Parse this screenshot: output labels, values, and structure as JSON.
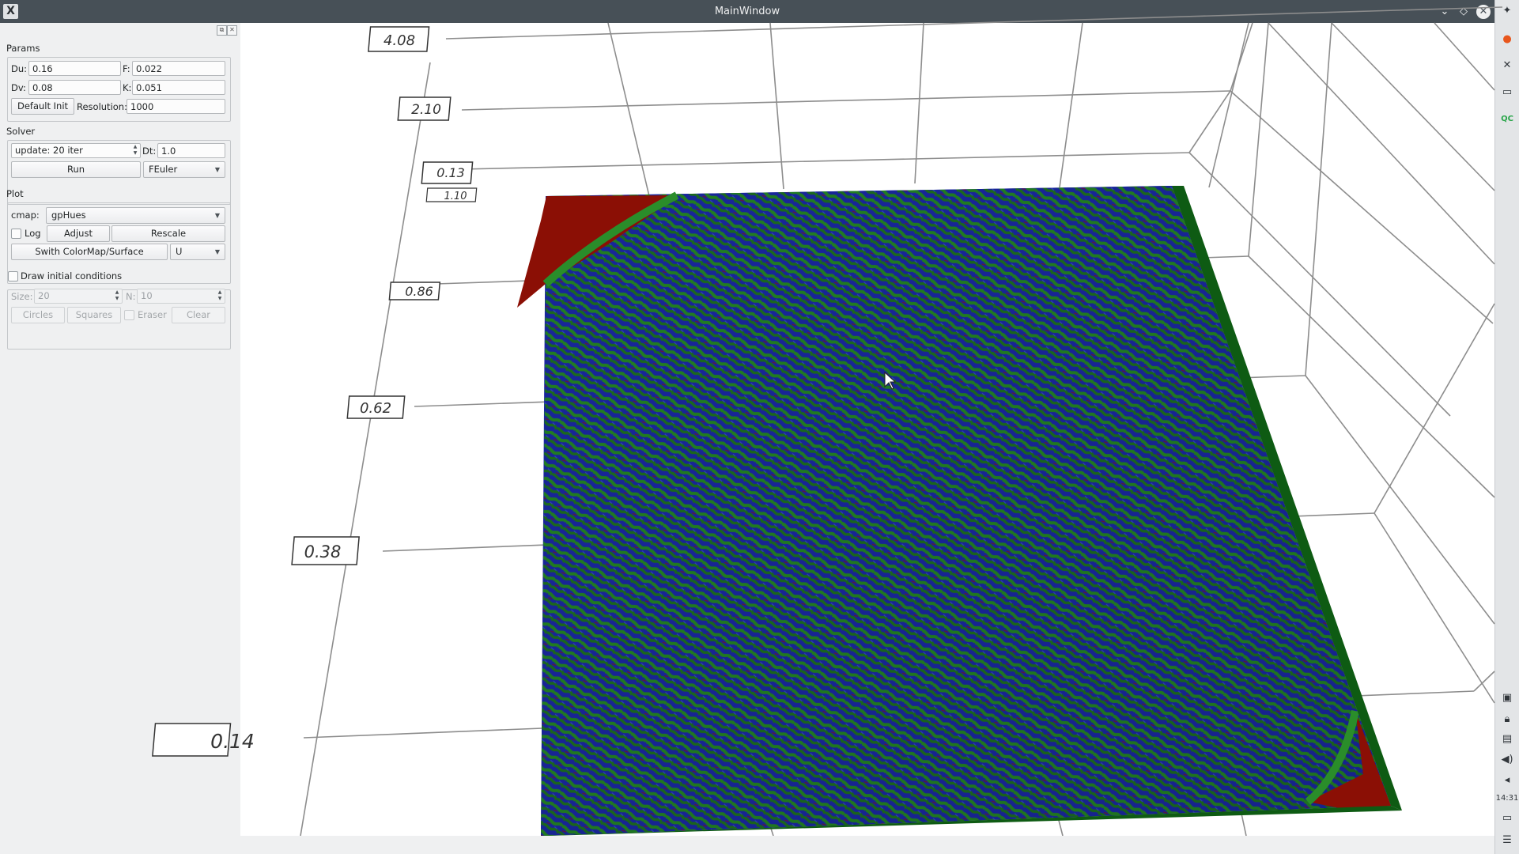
{
  "window": {
    "title": "MainWindow",
    "app_icon": "X"
  },
  "params": {
    "group_label": "Params",
    "du_label": "Du:",
    "du_value": "0.16",
    "f_label": "F:",
    "f_value": "0.022",
    "dv_label": "Dv:",
    "dv_value": "0.08",
    "k_label": "K:",
    "k_value": "0.051",
    "default_init_label": "Default Init",
    "resolution_label": "Resolution:",
    "resolution_value": "1000"
  },
  "solver": {
    "group_label": "Solver",
    "update_value": "update: 20 iter",
    "dt_label": "Dt:",
    "dt_value": "1.0",
    "run_label": "Run",
    "method_value": "FEuler"
  },
  "plot": {
    "group_label": "Plot",
    "cmap_label": "cmap:",
    "cmap_value": "gpHues",
    "log_label": "Log",
    "adjust_label": "Adjust",
    "rescale_label": "Rescale",
    "switch_label": "Swith ColorMap/Surface",
    "field_value": "U"
  },
  "draw": {
    "checkbox_label": "Draw initial conditions",
    "size_label": "Size:",
    "size_value": "20",
    "n_label": "N:",
    "n_value": "10",
    "circles_label": "Circles",
    "squares_label": "Squares",
    "eraser_label": "Eraser",
    "clear_label": "Clear"
  },
  "axis_ticks": [
    "4.08",
    "2.10",
    "0.13",
    "1.10",
    "0.86",
    "0.62",
    "0.38",
    "0.14"
  ],
  "tray": {
    "time": "14:31"
  },
  "colors": {
    "titlebar": "#475057",
    "surface_blue": "#1b2aa0",
    "surface_green": "#1f7a22",
    "surface_red": "#8b0f05"
  }
}
